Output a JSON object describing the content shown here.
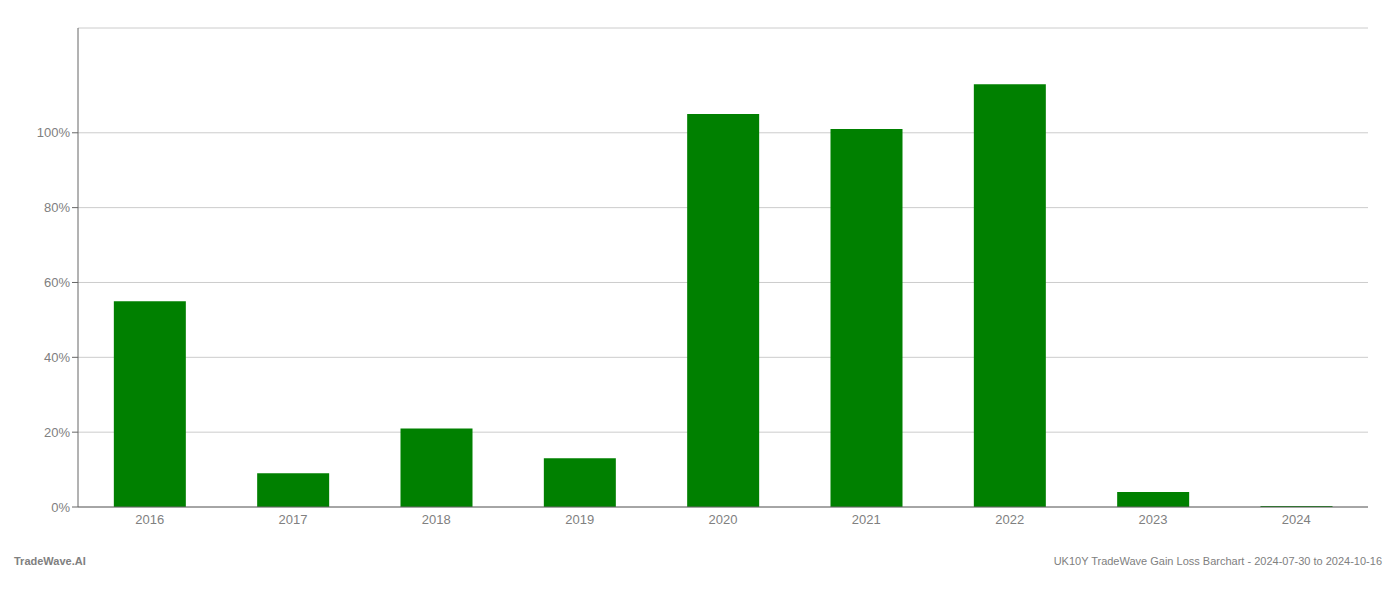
{
  "chart_data": {
    "type": "bar",
    "categories": [
      "2016",
      "2017",
      "2018",
      "2019",
      "2020",
      "2021",
      "2022",
      "2023",
      "2024"
    ],
    "values": [
      0.55,
      0.09,
      0.21,
      0.13,
      1.05,
      1.01,
      1.13,
      0.04,
      0.003
    ],
    "color": "#008000",
    "ylim": [
      0,
      1.28
    ],
    "yticks": [
      {
        "value": 0.0,
        "label": "0%"
      },
      {
        "value": 0.2,
        "label": "20%"
      },
      {
        "value": 0.4,
        "label": "40%"
      },
      {
        "value": 0.6,
        "label": "60%"
      },
      {
        "value": 0.8,
        "label": "80%"
      },
      {
        "value": 1.0,
        "label": "100%"
      }
    ],
    "grid": true,
    "annotations": [
      "TradeWave.AI",
      "UK10Y TradeWave Gain Loss Barchart - 2024-07-30 to 2024-10-16"
    ]
  }
}
